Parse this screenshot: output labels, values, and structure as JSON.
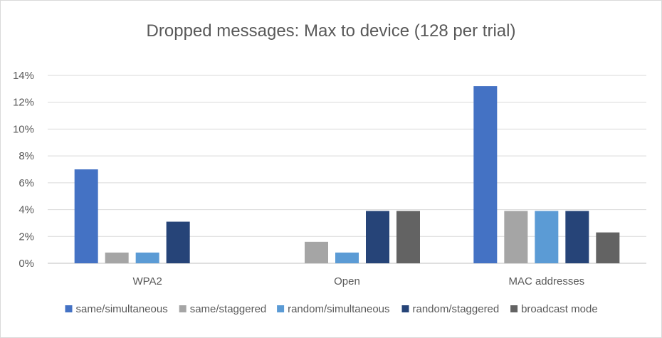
{
  "chart_data": {
    "type": "bar",
    "title": "Dropped messages: Max to device (128 per trial)",
    "categories": [
      "WPA2",
      "Open",
      "MAC addresses"
    ],
    "ylim": [
      0,
      14
    ],
    "y_ticks": [
      0,
      2,
      4,
      6,
      8,
      10,
      12,
      14
    ],
    "y_tick_labels": [
      "0%",
      "2%",
      "4%",
      "6%",
      "8%",
      "10%",
      "12%",
      "14%"
    ],
    "y_unit": "percent",
    "grid": true,
    "legend_position": "bottom",
    "series": [
      {
        "name": "same/simultaneous",
        "color": "#4472c4",
        "values": [
          7.0,
          0,
          13.2
        ]
      },
      {
        "name": "same/staggered",
        "color": "#a5a5a5",
        "values": [
          0.8,
          1.6,
          3.9
        ]
      },
      {
        "name": "random/simultaneous",
        "color": "#5b9bd5",
        "values": [
          0.8,
          0.8,
          3.9
        ]
      },
      {
        "name": "random/staggered",
        "color": "#264478",
        "values": [
          3.1,
          3.9,
          3.9
        ]
      },
      {
        "name": "broadcast mode",
        "color": "#636363",
        "values": [
          0,
          3.9,
          2.3
        ]
      }
    ]
  }
}
